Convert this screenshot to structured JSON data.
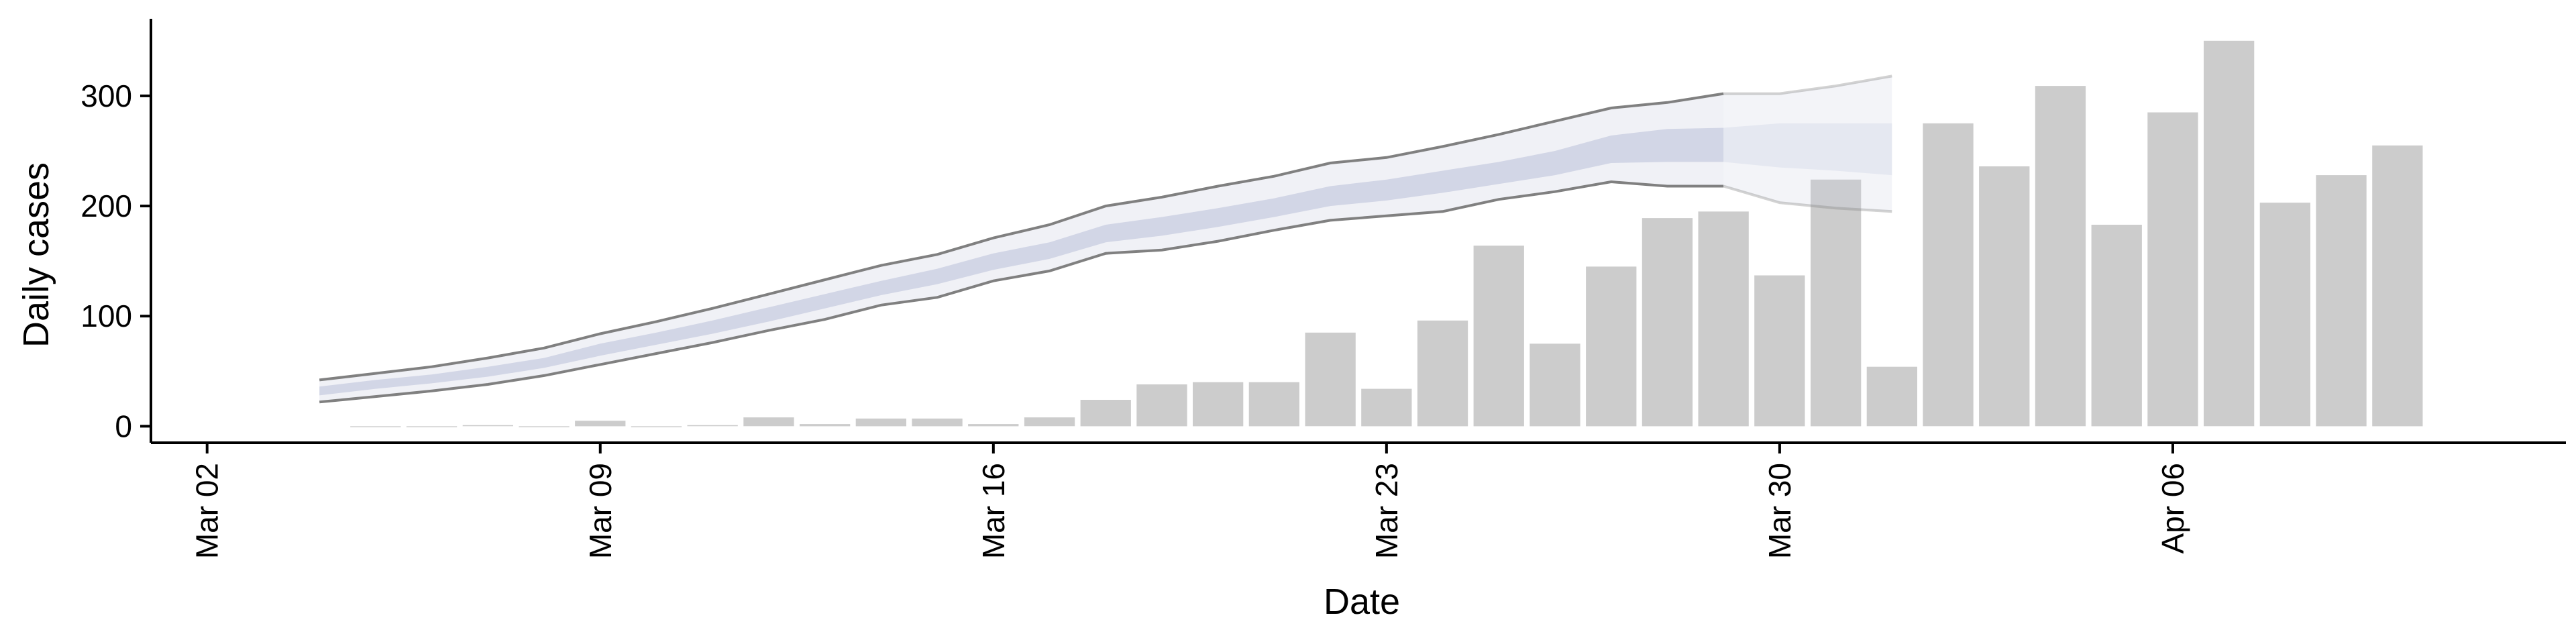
{
  "chart_data": {
    "type": "bar",
    "xlabel": "Date",
    "ylabel": "Daily cases",
    "x_axis": {
      "type": "date",
      "range": [
        "2020-03-01",
        "2020-04-13"
      ],
      "ticks": [
        {
          "date": "2020-03-02",
          "label": "Mar 02"
        },
        {
          "date": "2020-03-09",
          "label": "Mar 09"
        },
        {
          "date": "2020-03-16",
          "label": "Mar 16"
        },
        {
          "date": "2020-03-23",
          "label": "Mar 23"
        },
        {
          "date": "2020-03-30",
          "label": "Mar 30"
        },
        {
          "date": "2020-04-06",
          "label": "Apr 06"
        }
      ]
    },
    "y_axis": {
      "range": [
        -15,
        370
      ],
      "ticks": [
        0,
        100,
        200,
        300
      ]
    },
    "grid": false,
    "bar_color": "#cccccc",
    "band_color": "#c8cce0",
    "band_line_color": "#808080",
    "bars": [
      {
        "date": "2020-03-05",
        "value": 0
      },
      {
        "date": "2020-03-06",
        "value": 0
      },
      {
        "date": "2020-03-07",
        "value": 1
      },
      {
        "date": "2020-03-08",
        "value": 0
      },
      {
        "date": "2020-03-09",
        "value": 5
      },
      {
        "date": "2020-03-10",
        "value": 0
      },
      {
        "date": "2020-03-11",
        "value": 1
      },
      {
        "date": "2020-03-12",
        "value": 8
      },
      {
        "date": "2020-03-13",
        "value": 2
      },
      {
        "date": "2020-03-14",
        "value": 7
      },
      {
        "date": "2020-03-15",
        "value": 7
      },
      {
        "date": "2020-03-16",
        "value": 2
      },
      {
        "date": "2020-03-17",
        "value": 8
      },
      {
        "date": "2020-03-18",
        "value": 24
      },
      {
        "date": "2020-03-19",
        "value": 38
      },
      {
        "date": "2020-03-20",
        "value": 40
      },
      {
        "date": "2020-03-21",
        "value": 40
      },
      {
        "date": "2020-03-22",
        "value": 85
      },
      {
        "date": "2020-03-23",
        "value": 34
      },
      {
        "date": "2020-03-24",
        "value": 96
      },
      {
        "date": "2020-03-25",
        "value": 164
      },
      {
        "date": "2020-03-26",
        "value": 75
      },
      {
        "date": "2020-03-27",
        "value": 145
      },
      {
        "date": "2020-03-28",
        "value": 189
      },
      {
        "date": "2020-03-29",
        "value": 195
      },
      {
        "date": "2020-03-30",
        "value": 137
      },
      {
        "date": "2020-03-31",
        "value": 224
      },
      {
        "date": "2020-04-01",
        "value": 54
      },
      {
        "date": "2020-04-02",
        "value": 275
      },
      {
        "date": "2020-04-03",
        "value": 236
      },
      {
        "date": "2020-04-04",
        "value": 309
      },
      {
        "date": "2020-04-05",
        "value": 183
      },
      {
        "date": "2020-04-06",
        "value": 285
      },
      {
        "date": "2020-04-07",
        "value": 350
      },
      {
        "date": "2020-04-08",
        "value": 203
      },
      {
        "date": "2020-04-09",
        "value": 228
      },
      {
        "date": "2020-04-10",
        "value": 255
      }
    ],
    "estimate": [
      {
        "date": "2020-03-04",
        "lower90": 22,
        "lower50": 28,
        "upper50": 36,
        "upper90": 42
      },
      {
        "date": "2020-03-05",
        "lower90": 27,
        "lower50": 34,
        "upper50": 42,
        "upper90": 48
      },
      {
        "date": "2020-03-06",
        "lower90": 32,
        "lower50": 39,
        "upper50": 47,
        "upper90": 54
      },
      {
        "date": "2020-03-07",
        "lower90": 38,
        "lower50": 45,
        "upper50": 54,
        "upper90": 62
      },
      {
        "date": "2020-03-08",
        "lower90": 46,
        "lower50": 53,
        "upper50": 62,
        "upper90": 71
      },
      {
        "date": "2020-03-09",
        "lower90": 56,
        "lower50": 64,
        "upper50": 75,
        "upper90": 84
      },
      {
        "date": "2020-03-10",
        "lower90": 66,
        "lower50": 74,
        "upper50": 85,
        "upper90": 95
      },
      {
        "date": "2020-03-11",
        "lower90": 76,
        "lower50": 84,
        "upper50": 96,
        "upper90": 107
      },
      {
        "date": "2020-03-12",
        "lower90": 87,
        "lower50": 95,
        "upper50": 108,
        "upper90": 120
      },
      {
        "date": "2020-03-13",
        "lower90": 97,
        "lower50": 107,
        "upper50": 120,
        "upper90": 133
      },
      {
        "date": "2020-03-14",
        "lower90": 110,
        "lower50": 119,
        "upper50": 132,
        "upper90": 146
      },
      {
        "date": "2020-03-15",
        "lower90": 117,
        "lower50": 129,
        "upper50": 143,
        "upper90": 156
      },
      {
        "date": "2020-03-16",
        "lower90": 132,
        "lower50": 142,
        "upper50": 157,
        "upper90": 171
      },
      {
        "date": "2020-03-17",
        "lower90": 141,
        "lower50": 152,
        "upper50": 167,
        "upper90": 183
      },
      {
        "date": "2020-03-18",
        "lower90": 157,
        "lower50": 167,
        "upper50": 183,
        "upper90": 200
      },
      {
        "date": "2020-03-19",
        "lower90": 160,
        "lower50": 173,
        "upper50": 190,
        "upper90": 208
      },
      {
        "date": "2020-03-20",
        "lower90": 168,
        "lower50": 181,
        "upper50": 198,
        "upper90": 218
      },
      {
        "date": "2020-03-21",
        "lower90": 178,
        "lower50": 190,
        "upper50": 207,
        "upper90": 227
      },
      {
        "date": "2020-03-22",
        "lower90": 187,
        "lower50": 200,
        "upper50": 218,
        "upper90": 239
      },
      {
        "date": "2020-03-23",
        "lower90": 191,
        "lower50": 205,
        "upper50": 224,
        "upper90": 244
      },
      {
        "date": "2020-03-24",
        "lower90": 195,
        "lower50": 212,
        "upper50": 232,
        "upper90": 254
      },
      {
        "date": "2020-03-25",
        "lower90": 206,
        "lower50": 220,
        "upper50": 240,
        "upper90": 265
      },
      {
        "date": "2020-03-26",
        "lower90": 213,
        "lower50": 228,
        "upper50": 250,
        "upper90": 277
      },
      {
        "date": "2020-03-27",
        "lower90": 222,
        "lower50": 239,
        "upper50": 264,
        "upper90": 289
      },
      {
        "date": "2020-03-28",
        "lower90": 218,
        "lower50": 240,
        "upper50": 270,
        "upper90": 294
      },
      {
        "date": "2020-03-29",
        "lower90": 218,
        "lower50": 240,
        "upper50": 271,
        "upper90": 302
      }
    ],
    "forecast": [
      {
        "date": "2020-03-29",
        "lower90": 218,
        "lower50": 240,
        "upper50": 271,
        "upper90": 302
      },
      {
        "date": "2020-03-30",
        "lower90": 203,
        "lower50": 235,
        "upper50": 275,
        "upper90": 302
      },
      {
        "date": "2020-03-31",
        "lower90": 198,
        "lower50": 232,
        "upper50": 275,
        "upper90": 309
      },
      {
        "date": "2020-04-01",
        "lower90": 195,
        "lower50": 228,
        "upper50": 275,
        "upper90": 318
      }
    ]
  }
}
